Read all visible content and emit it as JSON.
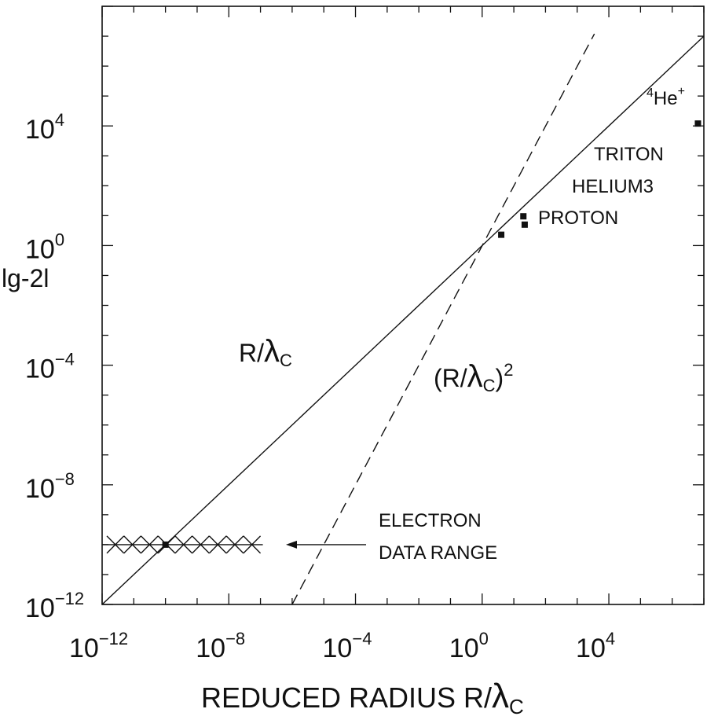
{
  "chart_data": {
    "type": "scatter",
    "xscale": "log",
    "yscale": "log",
    "xlim": [
      1e-12,
      10000000.0
    ],
    "ylim": [
      1e-12,
      100000000.0
    ],
    "grid": false,
    "xlabel": {
      "text": "REDUCED RADIUS R/",
      "lambda": "λ",
      "sub": "C"
    },
    "ylabel": "lg-2l",
    "x_ticks": [
      {
        "base": "10",
        "exp": "−12",
        "value": 1e-12
      },
      {
        "base": "10",
        "exp": "−8",
        "value": 1e-08
      },
      {
        "base": "10",
        "exp": "−4",
        "value": 0.0001
      },
      {
        "base": "10",
        "exp": "0",
        "value": 1
      },
      {
        "base": "10",
        "exp": "4",
        "value": 10000.0
      }
    ],
    "y_ticks": [
      {
        "base": "10",
        "exp": "−12",
        "value": 1e-12
      },
      {
        "base": "10",
        "exp": "−8",
        "value": 1e-08
      },
      {
        "base": "10",
        "exp": "−4",
        "value": 0.0001
      },
      {
        "base": "10",
        "exp": "0",
        "value": 1
      },
      {
        "base": "10",
        "exp": "4",
        "value": 10000.0
      }
    ],
    "series": [
      {
        "style": "solid",
        "x": [
          1e-12,
          10000000.0
        ],
        "y": [
          1e-12,
          10000000.0
        ]
      },
      {
        "style": "dashed",
        "x": [
          1e-06,
          3500.0
        ],
        "y": [
          1e-12,
          12000000.0
        ]
      }
    ],
    "curve_labels": [
      {
        "text": "R/",
        "lambda": "λ",
        "sub": "C",
        "sup": ""
      },
      {
        "text": "(R/",
        "lambda": "λ",
        "sub": "C",
        "close": ")",
        "sup": "2"
      }
    ],
    "points": [
      {
        "name": "PROTON",
        "x": 4.0,
        "y": 2.3
      },
      {
        "name": "TRITON",
        "x": 20,
        "y": 9.5
      },
      {
        "name": "HELIUM3",
        "x": 22,
        "y": 5.0
      },
      {
        "name": "4He+",
        "x": 6500000.0,
        "y": 12000.0
      }
    ],
    "labels": {
      "triton": "TRITON",
      "helium3": "HELIUM3",
      "proton": "PROTON",
      "he_sup4": "4",
      "he": "He",
      "he_plus": "+"
    },
    "electron": {
      "label_line1": "ELECTRON",
      "label_line2": "DATA RANGE",
      "x_range": [
        1e-12,
        1e-07
      ],
      "y": 1e-10,
      "point": {
        "x": 1e-10,
        "y": 1e-10
      }
    }
  }
}
